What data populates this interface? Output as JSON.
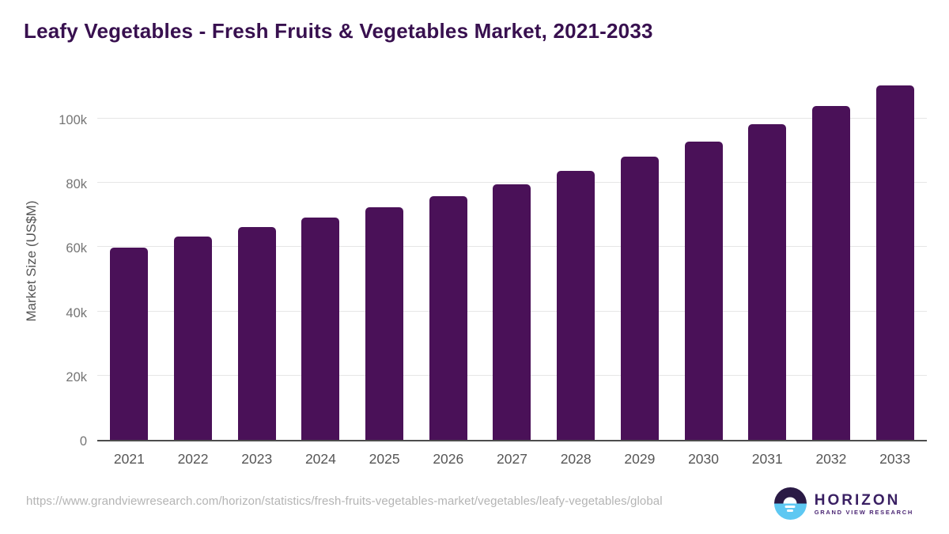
{
  "header": {
    "title": "Leafy Vegetables - Fresh Fruits & Vegetables Market, 2021-2033"
  },
  "chart_data": {
    "type": "bar",
    "title": "Leafy Vegetables - Fresh Fruits & Vegetables Market, 2021-2033",
    "categories": [
      "2021",
      "2022",
      "2023",
      "2024",
      "2025",
      "2026",
      "2027",
      "2028",
      "2029",
      "2030",
      "2031",
      "2032",
      "2033"
    ],
    "values": [
      59800,
      63300,
      66300,
      69200,
      72500,
      75900,
      79600,
      83800,
      88100,
      92900,
      98200,
      103900,
      110300
    ],
    "unit": "US$M",
    "xlabel": "",
    "ylabel": "Market Size (US$M)",
    "ylim": [
      0,
      112000
    ],
    "yticks": [
      {
        "value": 0,
        "label": "0"
      },
      {
        "value": 20000,
        "label": "20k"
      },
      {
        "value": 40000,
        "label": "40k"
      },
      {
        "value": 60000,
        "label": "60k"
      },
      {
        "value": 80000,
        "label": "80k"
      },
      {
        "value": 100000,
        "label": "100k"
      }
    ],
    "grid": "horizontal",
    "legend": "none",
    "bar_color": "#4a1158"
  },
  "footer": {
    "source_url": "https://www.grandviewresearch.com/horizon/statistics/fresh-fruits-vegetables-market/vegetables/leafy-vegetables/global",
    "logo": {
      "name": "HORIZON",
      "tagline": "GRAND VIEW RESEARCH"
    }
  },
  "colors": {
    "bar": "#4a1158",
    "title": "#38104f",
    "gridline": "#e6e6e6",
    "axis_line": "#4d4d4d",
    "y_tick_text": "#757575",
    "x_tick_text": "#565656",
    "source_text": "#b4b4b4",
    "logo_purple": "#2a1a45",
    "logo_blue": "#5ec8f2"
  }
}
